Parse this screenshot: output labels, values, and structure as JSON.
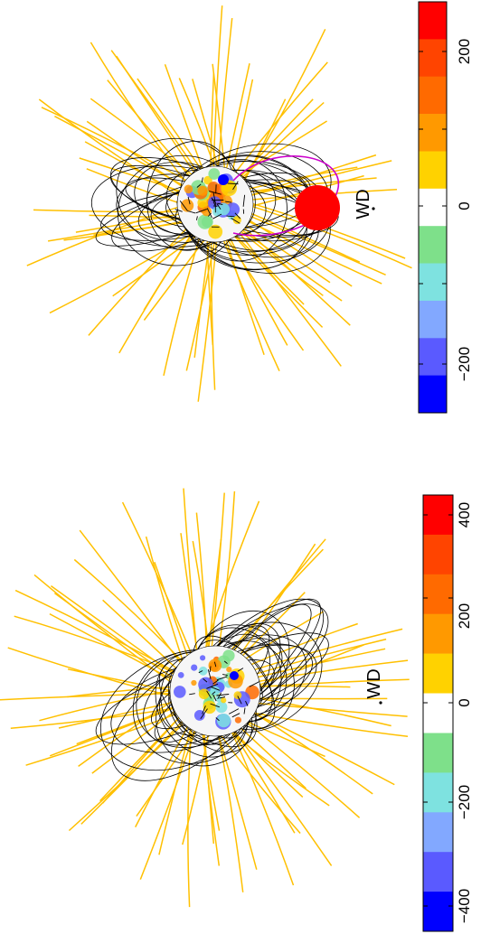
{
  "panels": [
    {
      "id": "top",
      "wd_label": "WD",
      "show_companion_disk": true,
      "colorbar": {
        "tick_labels": [
          "200",
          "0",
          "−200"
        ],
        "levels": [
          "#ff0000",
          "#ff4400",
          "#ff6a00",
          "#ff9900",
          "#ffd200",
          "#ffffff",
          "#7ee08a",
          "#7ee2e0",
          "#82a8ff",
          "#5a5aff",
          "#0000ff"
        ]
      }
    },
    {
      "id": "bottom",
      "wd_label": "WD",
      "show_companion_disk": false,
      "colorbar": {
        "tick_labels": [
          "400",
          "200",
          "0",
          "−200",
          "−400"
        ],
        "levels": [
          "#ff0000",
          "#ff4400",
          "#ff6a00",
          "#ff9900",
          "#ffd200",
          "#ffffff",
          "#7ee08a",
          "#7ee2e0",
          "#82a8ff",
          "#5a5aff",
          "#0000ff"
        ]
      }
    }
  ],
  "colors": {
    "open_field": "#ffc000",
    "closed_field": "#000000",
    "prominence_loop": "#cc00cc",
    "companion": "#ff0000",
    "star_base": "#f6f6f6"
  }
}
